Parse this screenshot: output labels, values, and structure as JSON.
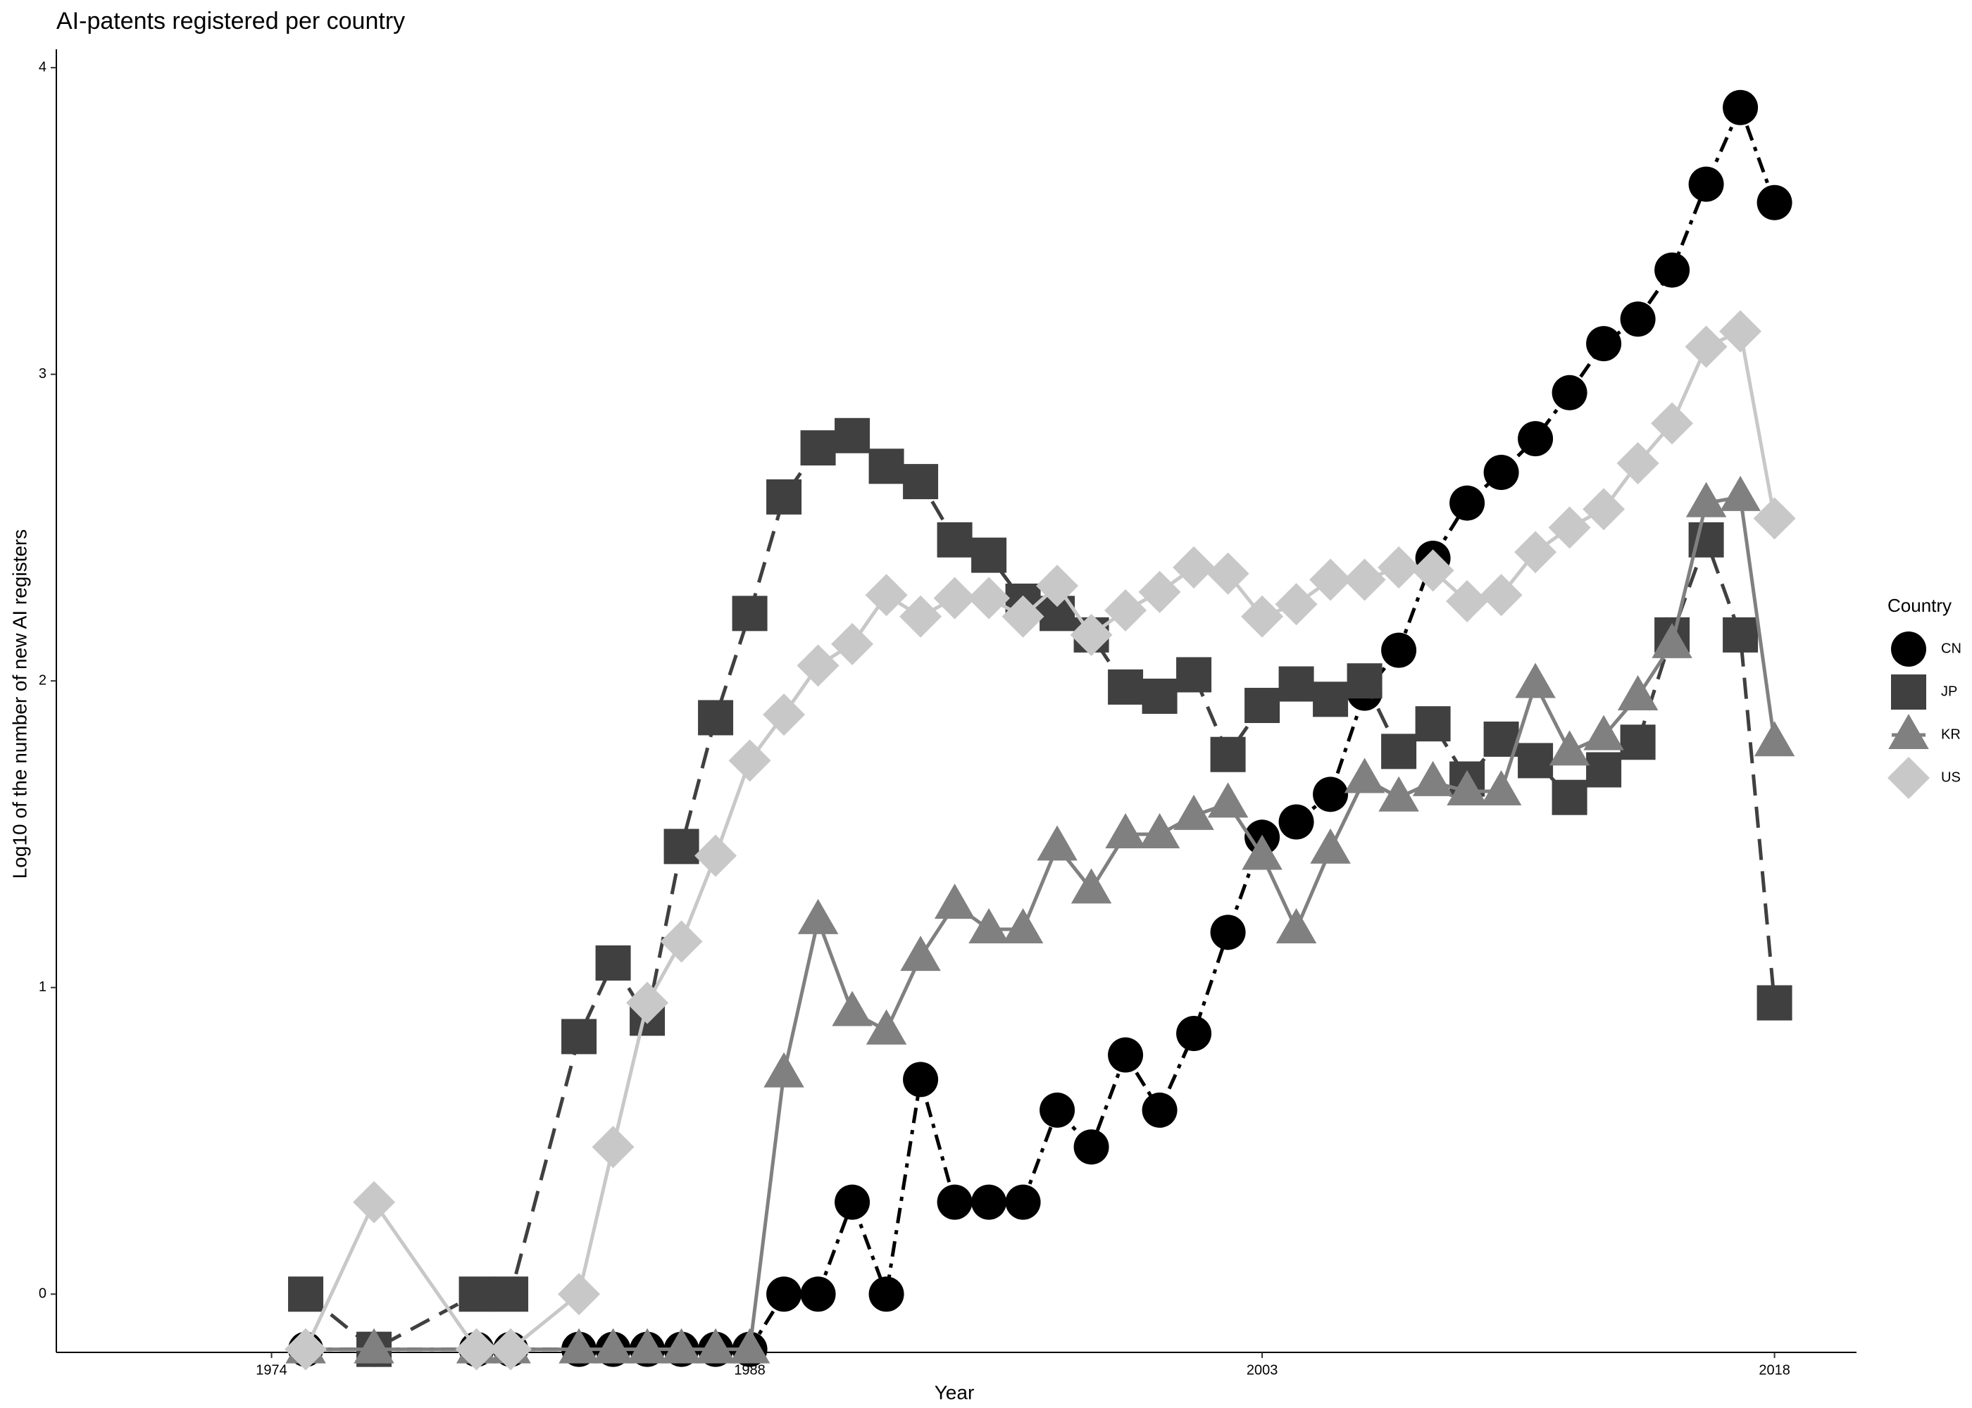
{
  "chart_data": {
    "type": "line",
    "title": "AI-patents registered per country",
    "x_label": "Year",
    "y_label": "Log10 of the number of new AI registers",
    "legend_title": "Country",
    "legend": "right",
    "grid": false,
    "xlim": [
      1967.7,
      2020.4
    ],
    "ylim": [
      -0.19,
      4.06
    ],
    "xticks": [
      1974,
      1988,
      2003,
      2018
    ],
    "yticks": [
      0,
      1,
      2,
      3,
      4
    ],
    "series": [
      {
        "name": "CN",
        "color": "#000000",
        "shape": "circle",
        "linetype": "dotdash",
        "x": [
          1975,
          1977,
          1980,
          1981,
          1983,
          1984,
          1985,
          1986,
          1987,
          1988,
          1989,
          1990,
          1991,
          1992,
          1993,
          1994,
          1995,
          1996,
          1997,
          1998,
          1999,
          2000,
          2001,
          2002,
          2003,
          2004,
          2005,
          2006,
          2007,
          2008,
          2009,
          2010,
          2011,
          2012,
          2013,
          2014,
          2015,
          2016,
          2017,
          2018
        ],
        "values": [
          -0.18,
          -0.18,
          -0.18,
          -0.18,
          -0.18,
          -0.18,
          -0.18,
          -0.18,
          -0.18,
          -0.18,
          0,
          0,
          0.3,
          0,
          0.7,
          0.3,
          0.3,
          0.3,
          0.6,
          0.48,
          0.78,
          0.6,
          0.85,
          1.18,
          1.49,
          1.54,
          1.63,
          1.96,
          2.1,
          2.4,
          2.58,
          2.68,
          2.79,
          2.94,
          3.1,
          3.18,
          3.34,
          3.62,
          3.87,
          3.56
        ]
      },
      {
        "name": "JP",
        "color": "#404040",
        "shape": "square",
        "linetype": "longdash",
        "x": [
          1975,
          1977,
          1980,
          1981,
          1983,
          1984,
          1985,
          1986,
          1987,
          1988,
          1989,
          1990,
          1991,
          1992,
          1993,
          1994,
          1995,
          1996,
          1997,
          1998,
          1999,
          2000,
          2001,
          2002,
          2003,
          2004,
          2005,
          2006,
          2007,
          2008,
          2009,
          2010,
          2011,
          2012,
          2013,
          2014,
          2015,
          2016,
          2017,
          2018
        ],
        "values": [
          0,
          -0.18,
          0,
          0,
          0.84,
          1.08,
          0.9,
          1.46,
          1.88,
          2.22,
          2.6,
          2.76,
          2.8,
          2.7,
          2.65,
          2.46,
          2.41,
          2.26,
          2.22,
          2.15,
          1.98,
          1.95,
          2.02,
          1.76,
          1.92,
          1.99,
          1.94,
          2.0,
          1.77,
          1.86,
          1.68,
          1.81,
          1.74,
          1.62,
          1.71,
          1.8,
          2.15,
          2.46,
          2.15,
          0.95
        ]
      },
      {
        "name": "KR",
        "color": "#808080",
        "shape": "triangle",
        "linetype": "solid",
        "x": [
          1975,
          1977,
          1980,
          1981,
          1983,
          1984,
          1985,
          1986,
          1987,
          1988,
          1989,
          1990,
          1991,
          1992,
          1993,
          1994,
          1995,
          1996,
          1997,
          1998,
          1999,
          2000,
          2001,
          2002,
          2003,
          2004,
          2005,
          2006,
          2007,
          2008,
          2009,
          2010,
          2011,
          2012,
          2013,
          2014,
          2015,
          2016,
          2017,
          2018
        ],
        "values": [
          -0.18,
          -0.18,
          -0.18,
          -0.18,
          -0.18,
          -0.18,
          -0.18,
          -0.18,
          -0.18,
          -0.18,
          0.72,
          1.22,
          0.92,
          0.86,
          1.1,
          1.27,
          1.19,
          1.19,
          1.46,
          1.32,
          1.5,
          1.5,
          1.56,
          1.6,
          1.43,
          1.19,
          1.45,
          1.68,
          1.62,
          1.67,
          1.64,
          1.64,
          1.99,
          1.77,
          1.82,
          1.95,
          2.12,
          2.58,
          2.6,
          1.8
        ]
      },
      {
        "name": "US",
        "color": "#c8c8c8",
        "shape": "diamond",
        "linetype": "solid",
        "x": [
          1975,
          1977,
          1980,
          1981,
          1983,
          1984,
          1985,
          1986,
          1987,
          1988,
          1989,
          1990,
          1991,
          1992,
          1993,
          1994,
          1995,
          1996,
          1997,
          1998,
          1999,
          2000,
          2001,
          2002,
          2003,
          2004,
          2005,
          2006,
          2007,
          2008,
          2009,
          2010,
          2011,
          2012,
          2013,
          2014,
          2015,
          2016,
          2017,
          2018
        ],
        "values": [
          -0.18,
          0.3,
          -0.18,
          -0.18,
          0,
          0.48,
          0.95,
          1.15,
          1.43,
          1.74,
          1.89,
          2.05,
          2.12,
          2.28,
          2.21,
          2.27,
          2.27,
          2.21,
          2.31,
          2.15,
          2.23,
          2.29,
          2.37,
          2.35,
          2.21,
          2.25,
          2.33,
          2.33,
          2.37,
          2.36,
          2.26,
          2.28,
          2.42,
          2.5,
          2.56,
          2.71,
          2.84,
          3.09,
          3.14,
          2.53
        ]
      }
    ]
  }
}
